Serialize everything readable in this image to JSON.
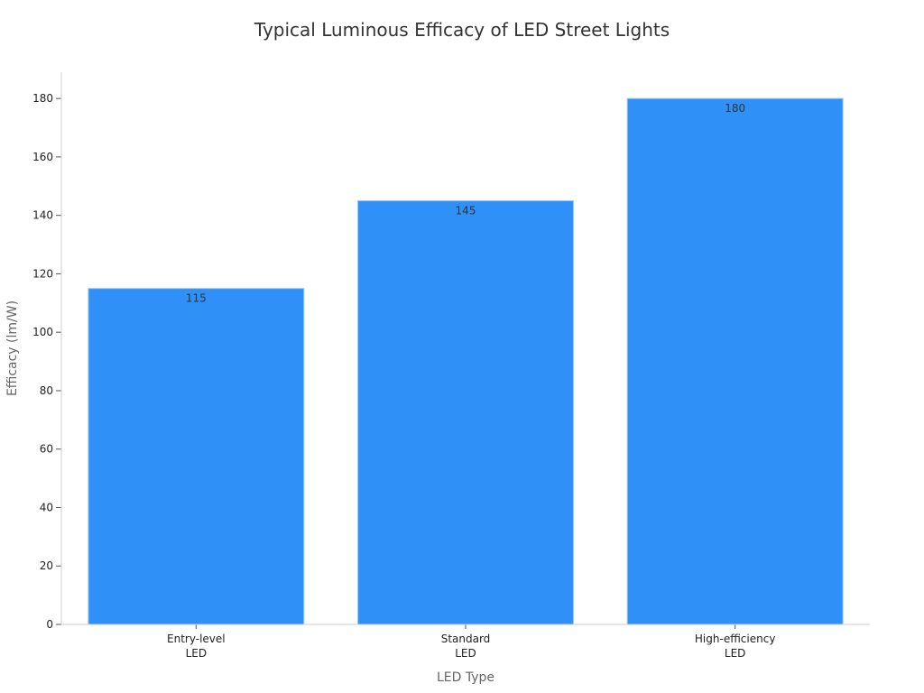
{
  "chart_data": {
    "type": "bar",
    "title": "Typical Luminous Efficacy of LED Street Lights",
    "xlabel": "LED Type",
    "ylabel": "Efficacy (lm/W)",
    "categories": [
      [
        "Entry-level",
        "LED"
      ],
      [
        "Standard",
        "LED"
      ],
      [
        "High-efficiency",
        "LED"
      ]
    ],
    "values": [
      115,
      145,
      180
    ],
    "ylim": [
      0,
      189
    ],
    "yticks": [
      0,
      20,
      40,
      60,
      80,
      100,
      120,
      140,
      160,
      180
    ],
    "grid": false,
    "legend": "none",
    "bar_color": "#2f91f7"
  }
}
